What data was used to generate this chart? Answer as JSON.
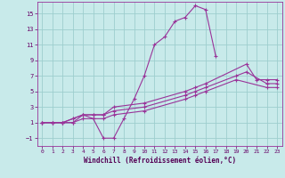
{
  "bg_color": "#c8eaea",
  "grid_color": "#9ecece",
  "line_color": "#993399",
  "xlabel": "Windchill (Refroidissement éolien,°C)",
  "xlim": [
    -0.5,
    23.5
  ],
  "ylim": [
    -2,
    16.5
  ],
  "xticks": [
    0,
    1,
    2,
    3,
    4,
    5,
    6,
    7,
    8,
    9,
    10,
    11,
    12,
    13,
    14,
    15,
    16,
    17,
    18,
    19,
    20,
    21,
    22,
    23
  ],
  "yticks": [
    -1,
    1,
    3,
    5,
    7,
    9,
    11,
    13,
    15
  ],
  "line1_x": [
    0,
    1,
    2,
    3,
    4,
    5,
    6,
    7,
    8,
    9,
    10,
    11,
    12,
    13,
    14,
    15,
    16,
    17
  ],
  "line1_y": [
    1,
    1,
    1,
    1,
    2,
    1.5,
    -1,
    -1,
    1.5,
    4,
    7,
    11,
    12,
    14,
    14.5,
    16,
    15.5,
    9.5
  ],
  "line2_x": [
    0,
    1,
    2,
    3,
    4,
    5,
    6,
    7,
    10,
    14,
    15,
    16,
    20,
    21,
    22,
    23
  ],
  "line2_y": [
    1,
    1,
    1,
    1.5,
    2,
    2,
    2,
    3,
    3.5,
    5,
    5.5,
    6,
    8.5,
    6.5,
    6.5,
    6.5
  ],
  "line3_x": [
    0,
    1,
    2,
    3,
    4,
    5,
    6,
    7,
    10,
    14,
    15,
    16,
    19,
    20,
    22,
    23
  ],
  "line3_y": [
    1,
    1,
    1,
    1.5,
    2,
    2,
    2,
    2.5,
    3,
    4.5,
    5,
    5.5,
    7,
    7.5,
    6,
    6
  ],
  "line4_x": [
    0,
    1,
    2,
    3,
    4,
    5,
    6,
    7,
    10,
    14,
    15,
    16,
    19,
    22,
    23
  ],
  "line4_y": [
    1,
    1,
    1,
    1,
    1.5,
    1.5,
    1.5,
    2,
    2.5,
    4,
    4.5,
    5,
    6.5,
    5.5,
    5.5
  ]
}
